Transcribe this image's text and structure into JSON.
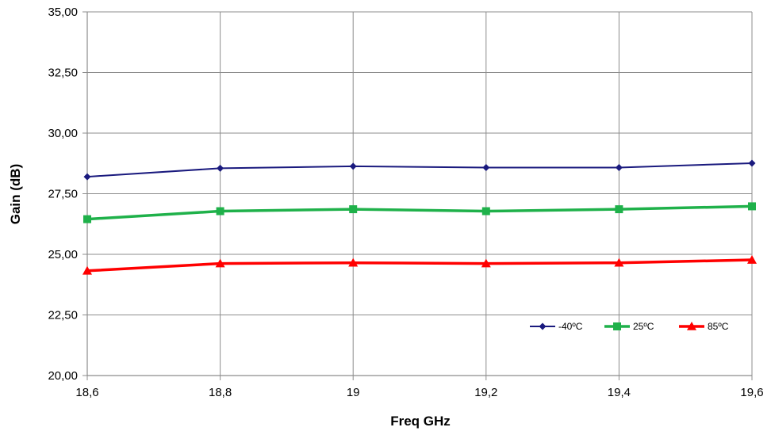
{
  "chart_data": {
    "type": "line",
    "title": "",
    "xlabel": "Freq GHz",
    "ylabel": "Gain (dB)",
    "x": [
      18.6,
      18.8,
      19.0,
      19.2,
      19.4,
      19.6
    ],
    "x_tick_labels": [
      "18,6",
      "18,8",
      "19",
      "19,2",
      "19,4",
      "19,6"
    ],
    "xlim": [
      18.6,
      19.6
    ],
    "y_ticks": [
      20,
      22.5,
      25,
      27.5,
      30,
      32.5,
      35
    ],
    "y_tick_labels": [
      "20,00",
      "22,50",
      "25,00",
      "27,50",
      "30,00",
      "32,50",
      "35,00"
    ],
    "ylim": [
      20,
      35
    ],
    "grid": true,
    "legend_position": "bottom-right",
    "series": [
      {
        "name": "-40ºC",
        "color": "#1a1a7e",
        "marker": "diamond",
        "values": [
          28.2,
          28.55,
          28.63,
          28.58,
          28.58,
          28.76
        ]
      },
      {
        "name": "25ºC",
        "color": "#1fb14a",
        "marker": "square",
        "values": [
          26.45,
          26.78,
          26.86,
          26.78,
          26.86,
          26.98
        ]
      },
      {
        "name": "85ºC",
        "color": "#ff0000",
        "marker": "triangle",
        "values": [
          24.32,
          24.62,
          24.65,
          24.62,
          24.65,
          24.77
        ]
      }
    ]
  }
}
